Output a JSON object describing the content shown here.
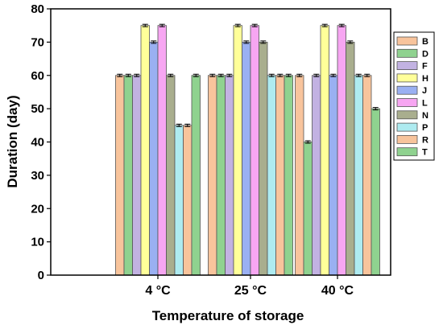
{
  "chart_data": {
    "type": "bar",
    "title": "",
    "xlabel": "Temperature of storage",
    "ylabel": "Duration (day)",
    "ylim": [
      0,
      80
    ],
    "yticks": [
      0,
      10,
      20,
      30,
      40,
      50,
      60,
      70,
      80
    ],
    "categories": [
      "4 °C",
      "25 °C",
      "40 °C"
    ],
    "legend_position": "right",
    "error_bars": true,
    "grid": false,
    "series": [
      {
        "name": "B",
        "color": "#F8C49C",
        "values": [
          60,
          60,
          60
        ]
      },
      {
        "name": "D",
        "color": "#8FD28F",
        "values": [
          60,
          60,
          40
        ]
      },
      {
        "name": "F",
        "color": "#C2B2E2",
        "values": [
          60,
          60,
          60
        ]
      },
      {
        "name": "H",
        "color": "#FFFF99",
        "values": [
          75,
          75,
          75
        ]
      },
      {
        "name": "J",
        "color": "#9AB0F2",
        "values": [
          70,
          70,
          60
        ]
      },
      {
        "name": "L",
        "color": "#F7A6F2",
        "values": [
          75,
          75,
          75
        ]
      },
      {
        "name": "N",
        "color": "#A9AE8E",
        "values": [
          60,
          70,
          70
        ]
      },
      {
        "name": "P",
        "color": "#AEEBF0",
        "values": [
          45,
          60,
          60
        ]
      },
      {
        "name": "R",
        "color": "#F8C49C",
        "values": [
          45,
          60,
          60
        ]
      },
      {
        "name": "T",
        "color": "#8FD28F",
        "values": [
          60,
          60,
          50
        ]
      }
    ]
  }
}
